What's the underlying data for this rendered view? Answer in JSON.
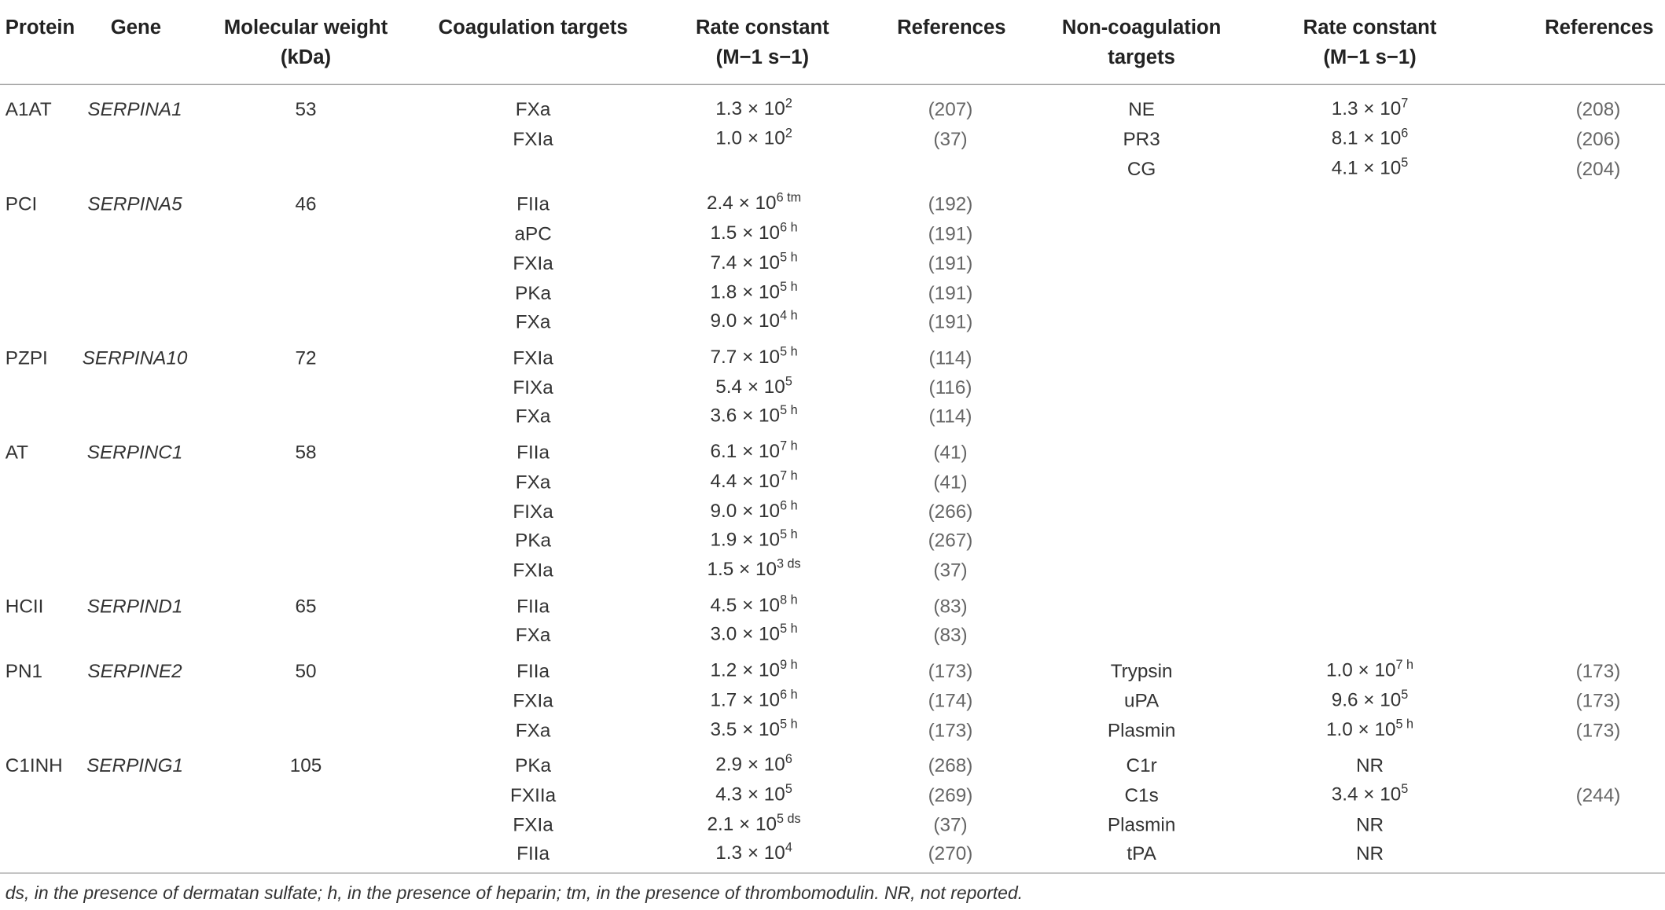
{
  "table": {
    "headers": [
      "Protein",
      "Gene",
      "Molecular weight (kDa)",
      "Coagulation targets",
      "Rate constant (M−1 s−1)",
      "References",
      "Non-coagulation targets",
      "Rate constant (M−1 s−1)",
      "References"
    ],
    "groups": [
      {
        "protein": "A1AT",
        "gene": "SERPINA1",
        "mw": 53,
        "coag": [
          {
            "target": "FXa",
            "rate": {
              "base": "1.3 × 10",
              "sup": "2"
            },
            "ref": "(207)"
          },
          {
            "target": "FXIa",
            "rate": {
              "base": "1.0 × 10",
              "sup": "2"
            },
            "ref": "(37)"
          }
        ],
        "noncoag": [
          {
            "target": "NE",
            "rate": {
              "base": "1.3 × 10",
              "sup": "7"
            },
            "ref": "(208)"
          },
          {
            "target": "PR3",
            "rate": {
              "base": "8.1 × 10",
              "sup": "6"
            },
            "ref": "(206)"
          },
          {
            "target": "CG",
            "rate": {
              "base": "4.1 × 10",
              "sup": "5"
            },
            "ref": "(204)"
          }
        ]
      },
      {
        "protein": "PCI",
        "gene": "SERPINA5",
        "mw": 46,
        "coag": [
          {
            "target": "FIIa",
            "rate": {
              "base": "2.4 × 10",
              "sup": "6 tm"
            },
            "ref": "(192)"
          },
          {
            "target": "aPC",
            "rate": {
              "base": "1.5 × 10",
              "sup": "6 h"
            },
            "ref": "(191)"
          },
          {
            "target": "FXIa",
            "rate": {
              "base": "7.4 × 10",
              "sup": "5 h"
            },
            "ref": "(191)"
          },
          {
            "target": "PKa",
            "rate": {
              "base": "1.8 × 10",
              "sup": "5 h"
            },
            "ref": "(191)"
          },
          {
            "target": "FXa",
            "rate": {
              "base": "9.0 × 10",
              "sup": "4 h"
            },
            "ref": "(191)"
          }
        ],
        "noncoag": []
      },
      {
        "protein": "PZPI",
        "gene": "SERPINA10",
        "mw": 72,
        "coag": [
          {
            "target": "FXIa",
            "rate": {
              "base": "7.7 × 10",
              "sup": "5 h"
            },
            "ref": "(114)"
          },
          {
            "target": "FIXa",
            "rate": {
              "base": "5.4 × 10",
              "sup": "5"
            },
            "ref": "(116)"
          },
          {
            "target": "FXa",
            "rate": {
              "base": "3.6 × 10",
              "sup": "5 h"
            },
            "ref": "(114)"
          }
        ],
        "noncoag": []
      },
      {
        "protein": "AT",
        "gene": "SERPINC1",
        "mw": 58,
        "coag": [
          {
            "target": "FIIa",
            "rate": {
              "base": "6.1 × 10",
              "sup": "7 h"
            },
            "ref": "(41)"
          },
          {
            "target": "FXa",
            "rate": {
              "base": "4.4 × 10",
              "sup": "7 h"
            },
            "ref": "(41)"
          },
          {
            "target": "FIXa",
            "rate": {
              "base": "9.0 × 10",
              "sup": "6 h"
            },
            "ref": "(266)"
          },
          {
            "target": "PKa",
            "rate": {
              "base": "1.9 × 10",
              "sup": "5 h"
            },
            "ref": "(267)"
          },
          {
            "target": "FXIa",
            "rate": {
              "base": "1.5 × 10",
              "sup": "3 ds"
            },
            "ref": "(37)"
          }
        ],
        "noncoag": []
      },
      {
        "protein": "HCII",
        "gene": "SERPIND1",
        "mw": 65,
        "coag": [
          {
            "target": "FIIa",
            "rate": {
              "base": "4.5 × 10",
              "sup": "8 h"
            },
            "ref": "(83)"
          },
          {
            "target": "FXa",
            "rate": {
              "base": "3.0 × 10",
              "sup": "5 h"
            },
            "ref": "(83)"
          }
        ],
        "noncoag": []
      },
      {
        "protein": "PN1",
        "gene": "SERPINE2",
        "mw": 50,
        "coag": [
          {
            "target": "FIIa",
            "rate": {
              "base": "1.2 × 10",
              "sup": "9 h"
            },
            "ref": "(173)"
          },
          {
            "target": "FXIa",
            "rate": {
              "base": "1.7 × 10",
              "sup": "6 h"
            },
            "ref": "(174)"
          },
          {
            "target": "FXa",
            "rate": {
              "base": "3.5 × 10",
              "sup": "5 h"
            },
            "ref": "(173)"
          }
        ],
        "noncoag": [
          {
            "target": "Trypsin",
            "rate": {
              "base": "1.0 × 10",
              "sup": "7 h"
            },
            "ref": "(173)"
          },
          {
            "target": "uPA",
            "rate": {
              "base": "9.6 × 10",
              "sup": "5"
            },
            "ref": "(173)"
          },
          {
            "target": "Plasmin",
            "rate": {
              "base": "1.0 × 10",
              "sup": "5 h"
            },
            "ref": "(173)"
          }
        ]
      },
      {
        "protein": "C1INH",
        "gene": "SERPING1",
        "mw": 105,
        "coag": [
          {
            "target": "PKa",
            "rate": {
              "base": "2.9 × 10",
              "sup": "6"
            },
            "ref": "(268)"
          },
          {
            "target": "FXIIa",
            "rate": {
              "base": "4.3 × 10",
              "sup": "5"
            },
            "ref": "(269)"
          },
          {
            "target": "FXIa",
            "rate": {
              "base": "2.1 × 10",
              "sup": "5 ds"
            },
            "ref": "(37)"
          },
          {
            "target": "FIIa",
            "rate": {
              "base": "1.3 × 10",
              "sup": "4"
            },
            "ref": "(270)"
          }
        ],
        "noncoag": [
          {
            "target": "C1r",
            "rate": {
              "base": "NR"
            }
          },
          {
            "target": "C1s",
            "rate": {
              "base": "3.4 × 10",
              "sup": "5"
            },
            "ref": "(244)"
          },
          {
            "target": "Plasmin",
            "rate": {
              "base": "NR"
            }
          },
          {
            "target": "tPA",
            "rate": {
              "base": "NR"
            }
          }
        ]
      }
    ],
    "footnote": "ds, in the presence of dermatan sulfate; h, in the presence of heparin; tm, in the presence of thrombomodulin. NR, not reported."
  }
}
